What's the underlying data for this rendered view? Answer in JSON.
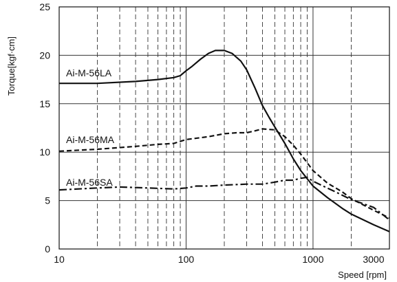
{
  "chart_data": {
    "type": "line",
    "title": "",
    "xlabel": "Speed [rpm]",
    "ylabel": "Torque[kgf·cm]",
    "x_scale": "log",
    "xlim": [
      10,
      4000
    ],
    "ylim": [
      0,
      25
    ],
    "x_ticks": [
      {
        "value": 10,
        "label": "10"
      },
      {
        "value": 100,
        "label": "100"
      },
      {
        "value": 1000,
        "label": "1000"
      },
      {
        "value": 3000,
        "label": "3000"
      }
    ],
    "y_ticks": [
      {
        "value": 0,
        "label": "0"
      },
      {
        "value": 5,
        "label": "5"
      },
      {
        "value": 10,
        "label": "10"
      },
      {
        "value": 15,
        "label": "15"
      },
      {
        "value": 20,
        "label": "20"
      },
      {
        "value": 25,
        "label": "25"
      }
    ],
    "grid": {
      "horizontal": "solid",
      "vertical_major": "solid",
      "vertical_minor": "dashed",
      "minor_x_values": [
        20,
        30,
        40,
        50,
        60,
        70,
        80,
        90,
        200,
        300,
        400,
        500,
        600,
        700,
        800,
        900,
        2000
      ]
    },
    "series": [
      {
        "name": "Ai-M-56LA",
        "dash": "solid",
        "color": "#111111",
        "points": [
          [
            10,
            17.1
          ],
          [
            20,
            17.1
          ],
          [
            40,
            17.3
          ],
          [
            60,
            17.5
          ],
          [
            80,
            17.7
          ],
          [
            90,
            17.9
          ],
          [
            100,
            18.4
          ],
          [
            110,
            18.8
          ],
          [
            130,
            19.6
          ],
          [
            150,
            20.2
          ],
          [
            170,
            20.5
          ],
          [
            200,
            20.5
          ],
          [
            230,
            20.2
          ],
          [
            270,
            19.4
          ],
          [
            300,
            18.5
          ],
          [
            350,
            16.6
          ],
          [
            400,
            14.8
          ],
          [
            450,
            13.6
          ],
          [
            500,
            12.6
          ],
          [
            600,
            10.9
          ],
          [
            700,
            9.3
          ],
          [
            800,
            8.1
          ],
          [
            1000,
            6.5
          ],
          [
            1300,
            5.3
          ],
          [
            1700,
            4.2
          ],
          [
            2000,
            3.6
          ],
          [
            3000,
            2.5
          ],
          [
            4000,
            1.8
          ]
        ]
      },
      {
        "name": "Ai-M-56MA",
        "dash": "dashed",
        "color": "#111111",
        "points": [
          [
            10,
            10.1
          ],
          [
            20,
            10.3
          ],
          [
            40,
            10.6
          ],
          [
            60,
            10.8
          ],
          [
            80,
            10.9
          ],
          [
            100,
            11.3
          ],
          [
            150,
            11.6
          ],
          [
            200,
            11.9
          ],
          [
            250,
            12.0
          ],
          [
            300,
            12.0
          ],
          [
            350,
            12.2
          ],
          [
            400,
            12.4
          ],
          [
            500,
            12.3
          ],
          [
            600,
            11.6
          ],
          [
            700,
            10.7
          ],
          [
            800,
            9.8
          ],
          [
            1000,
            8.1
          ],
          [
            1300,
            6.8
          ],
          [
            1700,
            5.9
          ],
          [
            2000,
            5.2
          ],
          [
            3000,
            4.0
          ],
          [
            4000,
            3.2
          ]
        ]
      },
      {
        "name": "Ai-M-56SA",
        "dash": "dashdot",
        "color": "#111111",
        "points": [
          [
            10,
            6.1
          ],
          [
            20,
            6.3
          ],
          [
            30,
            6.4
          ],
          [
            50,
            6.3
          ],
          [
            80,
            6.2
          ],
          [
            100,
            6.3
          ],
          [
            120,
            6.5
          ],
          [
            150,
            6.5
          ],
          [
            200,
            6.6
          ],
          [
            300,
            6.7
          ],
          [
            400,
            6.7
          ],
          [
            500,
            6.9
          ],
          [
            600,
            7.1
          ],
          [
            700,
            7.1
          ],
          [
            800,
            7.3
          ],
          [
            900,
            7.4
          ],
          [
            1000,
            7.0
          ],
          [
            1200,
            6.5
          ],
          [
            1500,
            5.9
          ],
          [
            2000,
            5.1
          ],
          [
            3000,
            4.3
          ],
          [
            4000,
            3.0
          ]
        ]
      }
    ]
  }
}
